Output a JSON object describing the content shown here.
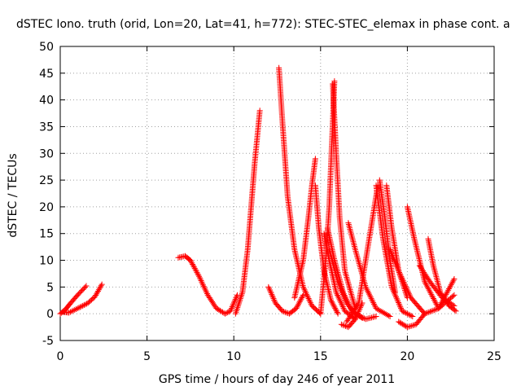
{
  "chart_data": {
    "type": "scatter",
    "title": "dSTEC Iono. truth (orid, Lon=20, Lat=41, h=772): STEC-STEC_elemax in phase cont. a",
    "xlabel": "GPS time / hours of day 246 of year 2011",
    "ylabel": "dSTEC  / TECUs",
    "xlim": [
      0,
      25
    ],
    "ylim": [
      -5,
      50
    ],
    "xticks": [
      "0",
      "5",
      "10",
      "15",
      "20",
      "25"
    ],
    "yticks": [
      "-5",
      "0",
      "5",
      "10",
      "15",
      "20",
      "25",
      "30",
      "35",
      "40",
      "45",
      "50"
    ],
    "grid": true,
    "marker": "plus",
    "series_color": "#ff0000",
    "arcs": [
      {
        "x": [
          0.0,
          0.3,
          0.6,
          1.0,
          1.5
        ],
        "y": [
          0.0,
          0.8,
          2.0,
          3.5,
          5.2
        ]
      },
      {
        "x": [
          0.2,
          0.5,
          1.0,
          1.6,
          2.0,
          2.4
        ],
        "y": [
          0.3,
          0.2,
          1.0,
          2.0,
          3.2,
          5.5
        ]
      },
      {
        "x": [
          6.8,
          7.2,
          7.5,
          8.0,
          8.5,
          9.0,
          9.5,
          9.8,
          10.2
        ],
        "y": [
          10.5,
          10.8,
          10.0,
          7.0,
          3.5,
          1.0,
          0.0,
          0.5,
          3.5
        ]
      },
      {
        "x": [
          10.1,
          10.5,
          10.8,
          11.0,
          11.2,
          11.5
        ],
        "y": [
          0.0,
          4.0,
          12.0,
          20.0,
          28.0,
          38.0
        ]
      },
      {
        "x": [
          12.0,
          12.4,
          12.8,
          13.2,
          13.6,
          14.0
        ],
        "y": [
          5.0,
          2.0,
          0.5,
          0.0,
          1.0,
          3.5
        ]
      },
      {
        "x": [
          12.6,
          12.8,
          13.1,
          13.5,
          14.0,
          14.5,
          15.0
        ],
        "y": [
          46.0,
          36.0,
          22.0,
          12.0,
          5.0,
          1.5,
          0.0
        ]
      },
      {
        "x": [
          13.5,
          14.0,
          14.3,
          14.5,
          14.7
        ],
        "y": [
          3.0,
          10.0,
          18.0,
          24.0,
          29.0
        ]
      },
      {
        "x": [
          14.7,
          14.9,
          15.2,
          15.6,
          16.0
        ],
        "y": [
          24.0,
          16.0,
          8.0,
          2.5,
          0.0
        ]
      },
      {
        "x": [
          15.0,
          15.3,
          15.5,
          15.65,
          15.8
        ],
        "y": [
          0.0,
          10.0,
          20.0,
          32.0,
          43.5
        ]
      },
      {
        "x": [
          15.7,
          15.9,
          16.1,
          16.4,
          17.0
        ],
        "y": [
          43.0,
          30.0,
          18.0,
          8.0,
          1.0
        ]
      },
      {
        "x": [
          15.2,
          15.5,
          15.9,
          16.4,
          17.0
        ],
        "y": [
          15.0,
          10.0,
          4.0,
          0.5,
          -1.0
        ]
      },
      {
        "x": [
          15.4,
          15.8,
          16.3,
          16.8,
          17.4
        ],
        "y": [
          16.0,
          10.0,
          4.0,
          0.5,
          -0.8
        ]
      },
      {
        "x": [
          15.5,
          16.0,
          16.5,
          17.0,
          17.6,
          18.2
        ],
        "y": [
          12.0,
          6.0,
          2.0,
          0.0,
          -1.0,
          -0.5
        ]
      },
      {
        "x": [
          16.2,
          16.6,
          17.0,
          17.4
        ],
        "y": [
          -2.0,
          -2.5,
          -1.0,
          2.0
        ]
      },
      {
        "x": [
          16.6,
          17.0,
          17.6,
          18.2,
          19.0
        ],
        "y": [
          17.0,
          12.0,
          5.0,
          1.0,
          -0.5
        ]
      },
      {
        "x": [
          16.5,
          17.2,
          17.8,
          18.3
        ],
        "y": [
          -1.5,
          2.0,
          14.0,
          24.0
        ]
      },
      {
        "x": [
          18.2,
          18.6,
          19.1,
          19.7,
          20.3
        ],
        "y": [
          24.0,
          14.0,
          5.0,
          0.5,
          -0.5
        ]
      },
      {
        "x": [
          18.4,
          18.7,
          19.0,
          19.3
        ],
        "y": [
          25.0,
          18.0,
          10.0,
          4.0
        ]
      },
      {
        "x": [
          18.8,
          19.1,
          19.5,
          20.0
        ],
        "y": [
          24.0,
          16.0,
          8.0,
          3.0
        ]
      },
      {
        "x": [
          19.0,
          19.5,
          20.2,
          21.0,
          21.8,
          22.7
        ],
        "y": [
          12.0,
          8.0,
          3.0,
          0.0,
          1.0,
          6.5
        ]
      },
      {
        "x": [
          19.5,
          20.0,
          20.5,
          21.0
        ],
        "y": [
          -1.5,
          -2.5,
          -2.0,
          0.0
        ]
      },
      {
        "x": [
          20.0,
          20.4,
          21.0,
          21.8,
          22.7
        ],
        "y": [
          20.0,
          14.0,
          6.0,
          1.0,
          3.5
        ]
      },
      {
        "x": [
          21.2,
          21.5,
          21.9,
          22.4,
          22.8
        ],
        "y": [
          14.0,
          9.0,
          4.0,
          1.5,
          0.5
        ]
      },
      {
        "x": [
          20.7,
          21.3,
          22.0,
          22.7
        ],
        "y": [
          9.0,
          6.0,
          3.0,
          1.5
        ]
      }
    ]
  }
}
